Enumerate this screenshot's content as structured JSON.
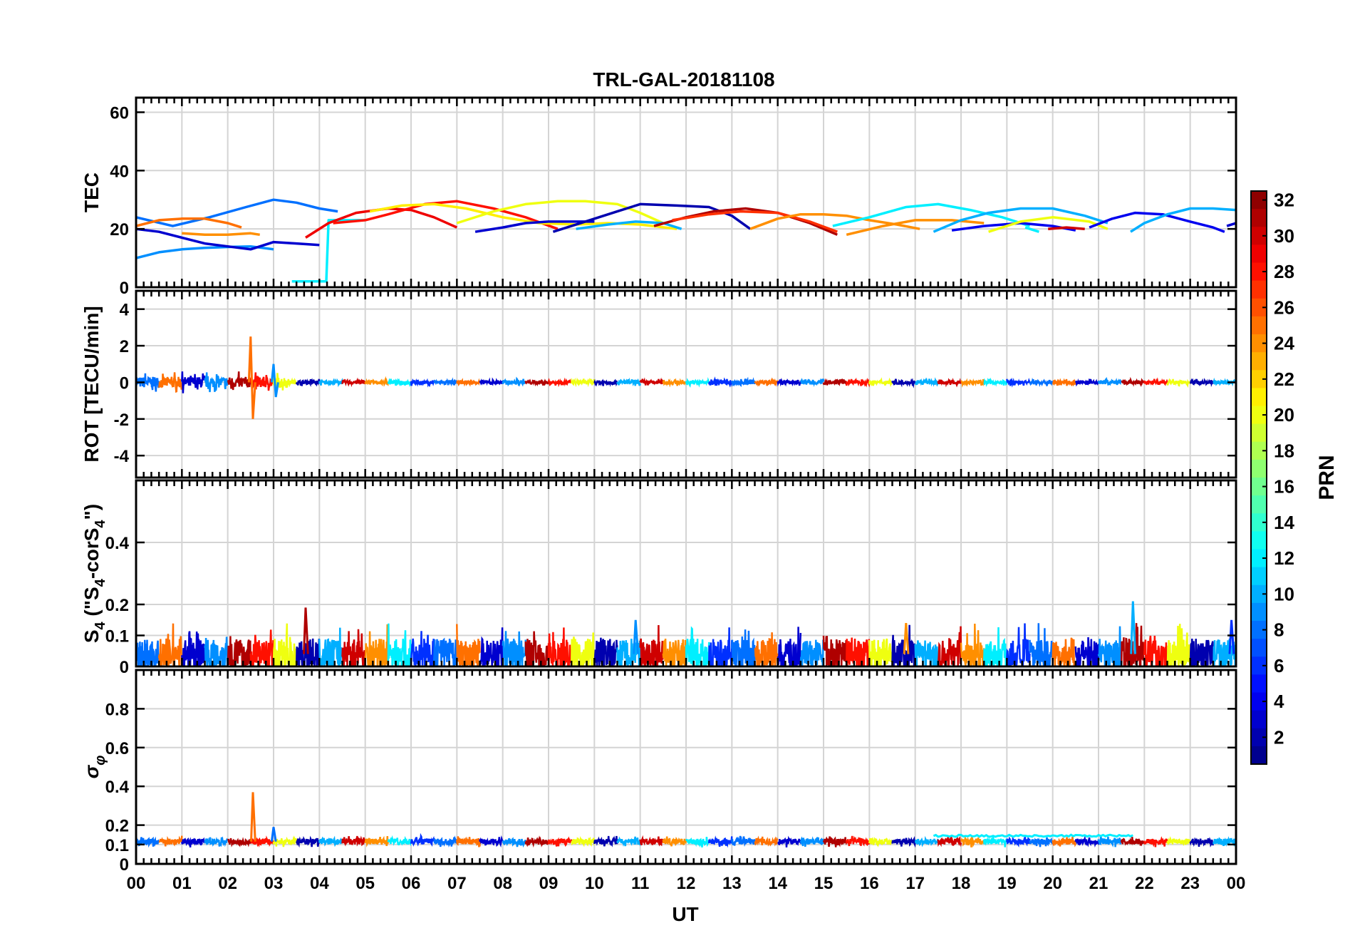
{
  "chart_data": {
    "type": "line",
    "title": "TRL-GAL-20181108",
    "xlabel": "UT",
    "xlim": [
      0,
      24
    ],
    "x_ticks": [
      0,
      1,
      2,
      3,
      4,
      5,
      6,
      7,
      8,
      9,
      10,
      11,
      12,
      13,
      14,
      15,
      16,
      17,
      18,
      19,
      20,
      21,
      22,
      23,
      24
    ],
    "x_tick_labels": [
      "00",
      "01",
      "02",
      "03",
      "04",
      "05",
      "06",
      "07",
      "08",
      "09",
      "10",
      "11",
      "12",
      "13",
      "14",
      "15",
      "16",
      "17",
      "18",
      "19",
      "20",
      "21",
      "22",
      "23",
      "00"
    ],
    "grid": true,
    "colorbar": {
      "label": "PRN",
      "range": [
        1,
        32
      ],
      "ticks": [
        2,
        4,
        6,
        8,
        10,
        12,
        14,
        16,
        18,
        20,
        22,
        24,
        26,
        28,
        30,
        32
      ],
      "colormap": "jet",
      "placement": "right"
    },
    "panels": [
      {
        "id": "tec",
        "ylabel": "TEC",
        "ylim": [
          0,
          65
        ],
        "y_ticks": [
          0,
          20,
          40,
          60
        ],
        "y_tick_labels": [
          "0",
          "20",
          "40",
          "60"
        ],
        "series": [
          {
            "prn": 9,
            "x": [
              0.0,
              0.5,
              1.0,
              1.5,
              2.0,
              2.5,
              3.0
            ],
            "y": [
              10,
              12,
              13,
              13.5,
              13.8,
              14,
              13
            ]
          },
          {
            "prn": 8,
            "x": [
              0.0,
              0.8,
              1.6,
              2.4,
              3.0,
              3.5,
              4.0,
              4.4
            ],
            "y": [
              24,
              21,
              24,
              27.5,
              30,
              29,
              27,
              26
            ]
          },
          {
            "prn": 3,
            "x": [
              0.0,
              0.5,
              1.0,
              1.5,
              2.0,
              2.5,
              3.0,
              3.5,
              4.0
            ],
            "y": [
              20,
              19,
              17,
              15,
              14,
              13,
              15.5,
              15,
              14.5
            ]
          },
          {
            "prn": 12,
            "x": [
              3.4,
              3.8,
              4.15,
              4.2,
              4.35,
              4.7,
              5.0
            ],
            "y": [
              2,
              2,
              2,
              23,
              23,
              23,
              23
            ]
          },
          {
            "prn": 25,
            "x": [
              0.0,
              0.5,
              1.0,
              1.5,
              2.0,
              2.3
            ],
            "y": [
              21,
              23,
              23.5,
              23.5,
              22,
              20.5
            ]
          },
          {
            "prn": 24,
            "x": [
              1.0,
              1.5,
              2.0,
              2.5,
              2.7
            ],
            "y": [
              18.5,
              18,
              18,
              18.5,
              18
            ]
          },
          {
            "prn": 29,
            "x": [
              3.7,
              4.2,
              4.8,
              5.5,
              6.0,
              6.5,
              7.0
            ],
            "y": [
              17,
              22,
              25.5,
              27,
              26.5,
              24,
              20.5
            ]
          },
          {
            "prn": 28,
            "x": [
              4.3,
              5.0,
              5.5,
              6.3,
              7.0,
              7.8,
              8.5,
              9.2
            ],
            "y": [
              22,
              23,
              25,
              28.5,
              29.5,
              27,
              24,
              20
            ]
          },
          {
            "prn": 21,
            "x": [
              5.1,
              5.8,
              6.5,
              7.2,
              8.0,
              8.8,
              9.6,
              10.3,
              11.0,
              11.8
            ],
            "y": [
              26,
              28,
              28.5,
              27,
              24,
              22,
              21.5,
              22,
              21.5,
              20
            ]
          },
          {
            "prn": 20,
            "x": [
              7.0,
              7.8,
              8.5,
              9.2,
              9.8,
              10.5,
              11.0,
              11.5
            ],
            "y": [
              22,
              26,
              28.5,
              29.5,
              29.5,
              28.5,
              25.5,
              22
            ]
          },
          {
            "prn": 3,
            "x": [
              7.4,
              8.0,
              8.5,
              9.0,
              9.5,
              10.0
            ],
            "y": [
              19,
              20.5,
              22,
              22.5,
              22.5,
              22.5
            ]
          },
          {
            "prn": 2,
            "x": [
              9.1,
              9.8,
              10.5,
              11.0,
              11.8,
              12.5,
              13.0,
              13.4
            ],
            "y": [
              19,
              22.5,
              26,
              28.5,
              28,
              27.5,
              24.5,
              20
            ]
          },
          {
            "prn": 10,
            "x": [
              9.6,
              10.3,
              10.9,
              11.5,
              11.9
            ],
            "y": [
              20,
              21.5,
              22.5,
              22,
              20
            ]
          },
          {
            "prn": 31,
            "x": [
              11.3,
              12.0,
              12.6,
              13.3,
              14.0,
              14.7,
              15.3
            ],
            "y": [
              21,
              24,
              26,
              27,
              25.5,
              22,
              18
            ]
          },
          {
            "prn": 27,
            "x": [
              11.7,
              12.5,
              13.2,
              14.0,
              14.7,
              15.3
            ],
            "y": [
              23,
              25,
              26,
              25.5,
              22.5,
              19
            ]
          },
          {
            "prn": 24,
            "x": [
              13.4,
              14.0,
              14.5,
              15.0,
              15.5,
              16.0,
              16.6,
              17.1
            ],
            "y": [
              20,
              23.5,
              25,
              25,
              24.5,
              23,
              21.5,
              20
            ]
          },
          {
            "prn": 12,
            "x": [
              15.2,
              16.0,
              16.8,
              17.5,
              18.2,
              18.9,
              19.5
            ],
            "y": [
              21,
              24,
              27.5,
              28.5,
              26.5,
              24,
              21
            ]
          },
          {
            "prn": 24,
            "x": [
              15.5,
              16.3,
              17.0,
              17.8,
              18.5
            ],
            "y": [
              18,
              21,
              23,
              23,
              22
            ]
          },
          {
            "prn": 10,
            "x": [
              17.4,
              18.0,
              18.6,
              19.3,
              20.0,
              20.7,
              21.2
            ],
            "y": [
              19,
              23,
              25.5,
              27,
              27,
              24.5,
              22
            ]
          },
          {
            "prn": 4,
            "x": [
              17.8,
              18.5,
              19.3,
              20.0,
              20.5
            ],
            "y": [
              19.5,
              21,
              22,
              21,
              19.5
            ]
          },
          {
            "prn": 20,
            "x": [
              18.6,
              19.3,
              20.0,
              20.8,
              21.2
            ],
            "y": [
              19,
              22.5,
              24,
              22.5,
              20
            ]
          },
          {
            "prn": 12,
            "x": [
              19.4,
              19.7
            ],
            "y": [
              20.5,
              19
            ]
          },
          {
            "prn": 30,
            "x": [
              19.9,
              20.3,
              20.7
            ],
            "y": [
              20,
              20.5,
              20
            ]
          },
          {
            "prn": 4,
            "x": [
              20.8,
              21.3,
              21.8,
              22.4,
              23.0,
              23.5,
              23.75
            ],
            "y": [
              20.5,
              23.5,
              25.5,
              25,
              22.5,
              20.5,
              19
            ]
          },
          {
            "prn": 10,
            "x": [
              21.7,
              22.0,
              22.5,
              23.0,
              23.5,
              24.0
            ],
            "y": [
              19,
              22,
              25,
              27,
              27,
              26.5
            ]
          },
          {
            "prn": 3,
            "x": [
              23.8,
              24.0
            ],
            "y": [
              21,
              22
            ]
          }
        ]
      },
      {
        "id": "rot",
        "ylabel": "ROT [TECU/min]",
        "ylim": [
          -5.2,
          5
        ],
        "y_ticks": [
          -4,
          -2,
          0,
          2,
          4
        ],
        "y_tick_labels": [
          "-4",
          "-2",
          "0",
          "2",
          "4"
        ],
        "baseline": 0,
        "noise_band": [
          0.3,
          0.1
        ],
        "spikes": [
          {
            "prn": 25,
            "x": 2.5,
            "values": [
              2.5,
              -2.0
            ]
          },
          {
            "prn": 9,
            "x": 3.0,
            "values": [
              1.0,
              -0.8
            ]
          }
        ]
      },
      {
        "id": "s4",
        "ylabel": "S4 (\"S4-corS4\")",
        "ylabel_parts": {
          "base": "S",
          "sub1": "4",
          "mid": " (\"S",
          "sub2": "4",
          "mid2": "-corS",
          "sub3": "4",
          "end": "\")"
        },
        "ylim": [
          0,
          0.6
        ],
        "y_ticks": [
          0,
          0.1,
          0.2,
          0.4
        ],
        "y_tick_labels": [
          "0",
          "0.1",
          "0.2",
          "0.4"
        ],
        "baseline": 0.04,
        "noise_band": [
          0.1,
          0.03
        ],
        "spikes": [
          {
            "prn": 31,
            "x": 3.7,
            "values": [
              0.19
            ]
          },
          {
            "prn": 9,
            "x": 10.9,
            "values": [
              0.15
            ]
          },
          {
            "prn": 24,
            "x": 16.8,
            "values": [
              0.14
            ]
          },
          {
            "prn": 10,
            "x": 21.75,
            "values": [
              0.21
            ]
          },
          {
            "prn": 6,
            "x": 23.9,
            "values": [
              0.15
            ]
          }
        ]
      },
      {
        "id": "sigma_phi",
        "ylabel": "σφ",
        "ylabel_parts": {
          "base": "σ",
          "sub": "φ"
        },
        "ylim": [
          0,
          1.0
        ],
        "y_ticks": [
          0,
          0.1,
          0.2,
          0.4,
          0.6,
          0.8
        ],
        "y_tick_labels": [
          "0",
          "0.1",
          "0.2",
          "0.4",
          "0.6",
          "0.8"
        ],
        "baseline": 0.115,
        "noise_band": [
          0.03,
          0.01
        ],
        "spikes": [
          {
            "prn": 25,
            "x": 2.55,
            "values": [
              0.37
            ]
          },
          {
            "prn": 8,
            "x": 3.0,
            "values": [
              0.19
            ]
          }
        ],
        "raised_segments": [
          {
            "prn": 12,
            "x": [
              17.4,
              21.8
            ],
            "value": 0.145
          }
        ]
      }
    ]
  }
}
